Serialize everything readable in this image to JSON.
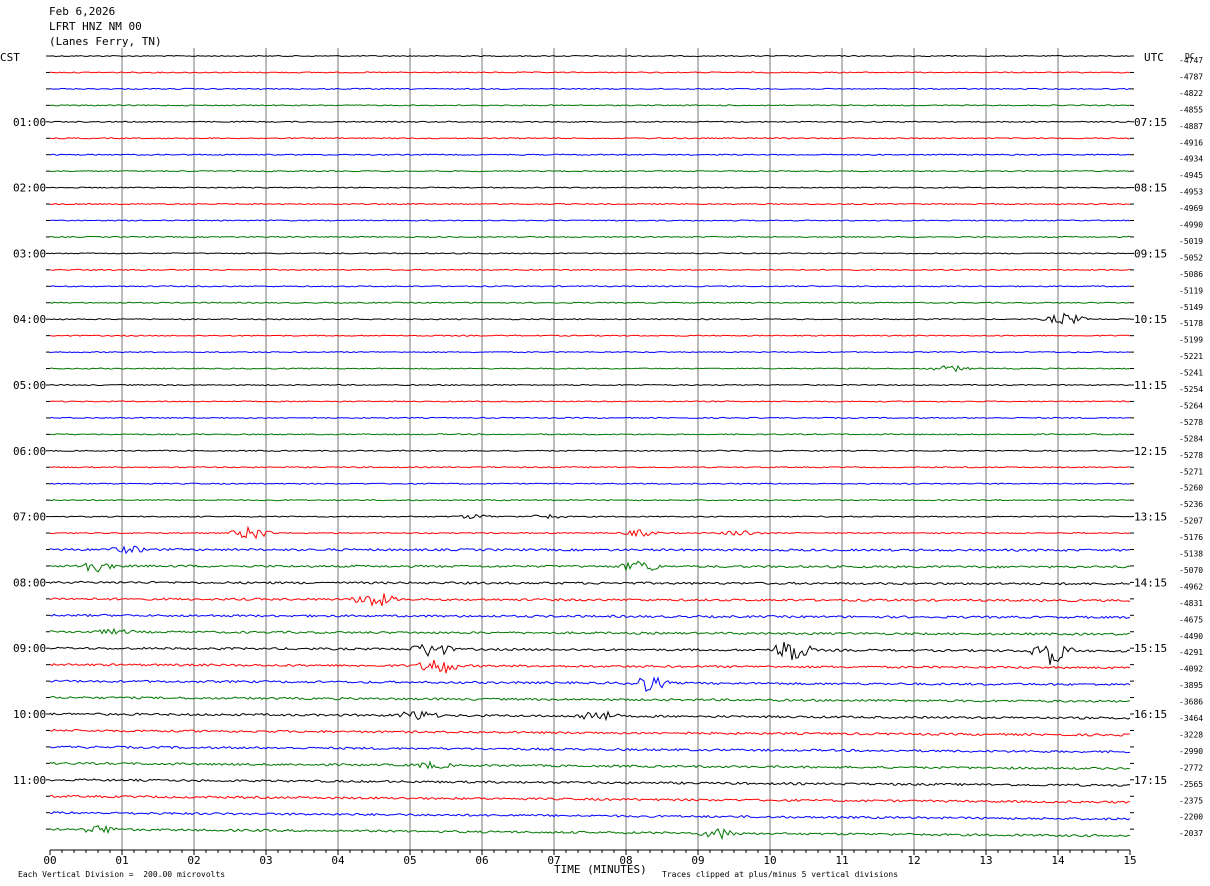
{
  "header": {
    "date": "Feb 6,2026",
    "station": "LFRT HNZ NM 00",
    "location": "(Lanes Ferry, TN)"
  },
  "labels": {
    "left_zone": "CST",
    "right_zone": "UTC",
    "dc": "DC",
    "xlabel": "TIME (MINUTES)",
    "scale_note": "Each Vertical Division =  200.00 microvolts",
    "clip_note": "Traces clipped at plus/minus 5 vertical divisions"
  },
  "chart_data": {
    "type": "line",
    "title": "LFRT HNZ NM 00",
    "xlabel": "TIME (MINUTES)",
    "xlim": [
      0,
      15
    ],
    "x_ticks": [
      "00",
      "01",
      "02",
      "03",
      "04",
      "05",
      "06",
      "07",
      "08",
      "09",
      "10",
      "11",
      "12",
      "13",
      "14",
      "15"
    ],
    "trace_colors": [
      "#000000",
      "#ff0000",
      "#0000ff",
      "#007700"
    ],
    "left_hour_labels": [
      "01:00",
      "02:00",
      "03:00",
      "04:00",
      "05:00",
      "06:00",
      "07:00",
      "08:00",
      "09:00",
      "10:00",
      "11:00"
    ],
    "right_hour_labels": [
      "07:15",
      "08:15",
      "09:15",
      "10:15",
      "11:15",
      "12:15",
      "13:15",
      "14:15",
      "15:15",
      "16:15",
      "17:15"
    ],
    "dc_offsets": [
      "-4747",
      "-4787",
      "-4822",
      "-4855",
      "-4887",
      "-4916",
      "-4934",
      "-4945",
      "-4953",
      "-4969",
      "-4990",
      "-5019",
      "-5052",
      "-5086",
      "-5119",
      "-5149",
      "-5178",
      "-5199",
      "-5221",
      "-5241",
      "-5254",
      "-5264",
      "-5278",
      "-5284",
      "-5278",
      "-5271",
      "-5260",
      "-5236",
      "-5207",
      "-5176",
      "-5138",
      "-5070",
      "-4962",
      "-4831",
      "-4675",
      "-4490",
      "-4291",
      "-4092",
      "-3895",
      "-3686",
      "-3464",
      "-3228",
      "-2990",
      "-2772",
      "-2565",
      "-2375",
      "-2200",
      "-2037"
    ],
    "scale_microvolts_per_division": 200.0,
    "clip_divisions": 5
  }
}
